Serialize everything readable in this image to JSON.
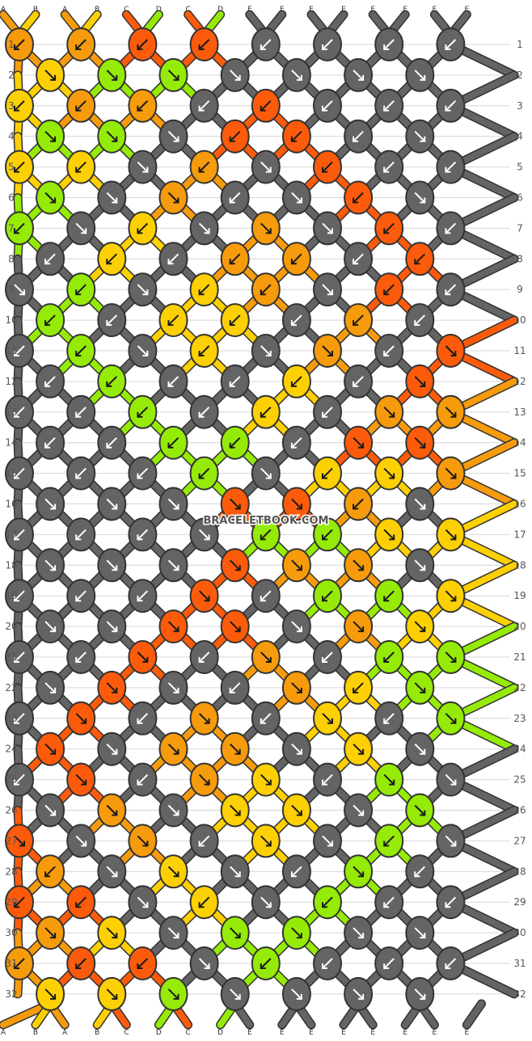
{
  "watermark": "BRACELETBOOK.COM",
  "colors": {
    "A": "#f59b0c",
    "B": "#fcd003",
    "C": "#fc5b0b",
    "D": "#95eb07",
    "E": "#646464",
    "outline": "#333333",
    "grid": "#d6d6d6"
  },
  "strands": {
    "top": [
      "A",
      "B",
      "A",
      "B",
      "C",
      "D",
      "C",
      "D",
      "E",
      "E",
      "E",
      "E",
      "E",
      "E",
      "E",
      "E"
    ],
    "bottom": [
      "A",
      "B",
      "A",
      "B",
      "C",
      "D",
      "C",
      "D",
      "E",
      "E",
      "E",
      "E",
      "E",
      "E",
      "E",
      "E"
    ]
  },
  "rows": 32,
  "knot_grid": [
    "A.A.C.C.E.E.E.E.",
    ".B.D.D.E.E.E.E.",
    "B.A.A.E.C.E.E.E.",
    ".D.D.E.C.C.E.E.",
    "B.B.E.A.E.C.E.E.",
    ".D.E.A.E.E.C.E.",
    "D.E.B.E.A.E.C.E.",
    ".E.B.E.A.A.E.C.",
    "E.D.E.B.A.E.C.E.",
    ".D.E.B.B.E.A.E.",
    "E.D.E.B.E.A.E.C.",
    ".E.D.E.E.B.E.C.",
    "E.E.D.E.B.E.A.A.",
    ".E.E.D.D.E.C.C.",
    "E.E.E.D.E.B.B.A.",
    ".E.E.E.C.C.A.E.",
    "E.E.E.E.D.D.B.B.",
    ".E.E.E.C.A.A.E.",
    "E.E.E.C.E.D.D.B.",
    ".E.E.C.C.E.A.B.",
    "E.E.C.E.A.E.D.D.",
    ".E.C.E.E.A.B.D.",
    "E.C.E.A.E.B.E.D.",
    ".C.E.A.A.E.B.E.",
    "E.C.E.A.B.E.D.E.",
    ".E.A.E.B.B.E.D.",
    "C.E.A.E.B.E.D.E.",
    ".A.E.B.E.E.D.E.",
    "C.C.E.B.E.D.E.E.",
    ".A.B.E.D.D.E.E.",
    "A.C.C.E.D.E.E.E.",
    ".B.B.D.E.E.E.E."
  ],
  "knot_dirs": [
    "RRRRRRRR",
    "LLLLLLL",
    "RRRRRRRR",
    "LLLRRRL",
    "RRLRLRRR",
    "LLLRLRL",
    "RLRLLLRR",
    "RRRRRRR",
    "LRLRRLRR",
    "RRRRRRR",
    "RRLRLLRL",
    "RRRRRRL",
    "RRRRRRLL",
    "RRRRRLL",
    "RRRRLRLL",
    "LLLLLRL",
    "RRRLRRLL",
    "LLLLLLL",
    "RRRLRRRL",
    "LLLLLLL",
    "RRLRLRRL",
    "LLLRLRL",
    "RLRLRLRL",
    "LLLLLLL",
    "RLRLLRLL",
    "LLLLLLL",
    "LLLRLLRL",
    "RLLLRLR",
    "RRLRLRRR",
    "LLLLLLL",
    "RRRLRRRR",
    "LLLLLLL"
  ]
}
